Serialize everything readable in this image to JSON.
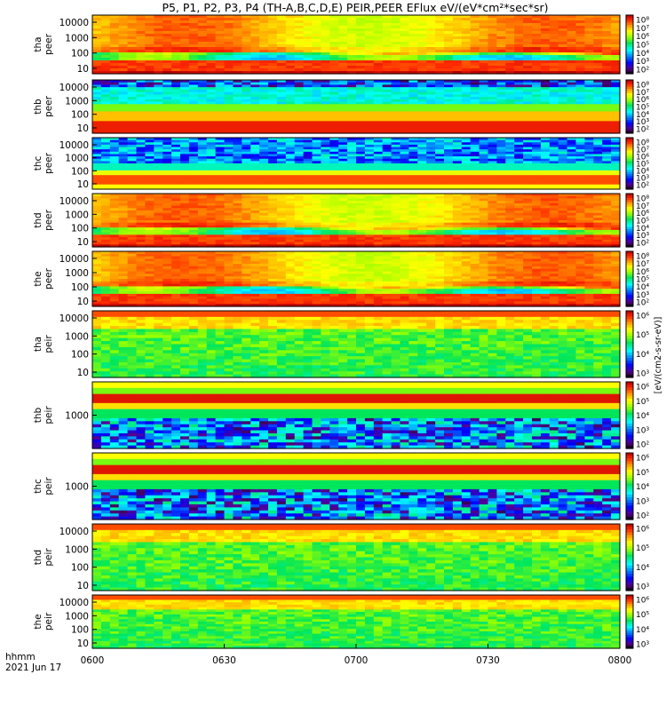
{
  "title": "P5, P1, P2, P3, P4 (TH-A,B,C,D,E) PEIR,PEER EFlux eV/(eV*cm²*sec*sr)",
  "footer": {
    "label1": "hhmm",
    "label2": "2021 Jun 17"
  },
  "colorbar_axis_label": "[eV/(cm2-s-sr-eV)]",
  "chart_data": [
    {
      "type": "heatmap",
      "id": "tha-peer",
      "ylabel_1": "tha",
      "ylabel_2": "peer",
      "yticks": [
        "10000",
        "1000",
        "100",
        "10"
      ],
      "cb_ticks": [
        "10⁸",
        "10⁷",
        "10⁶",
        "10⁵",
        "10⁴",
        "10³",
        "10²"
      ],
      "profile": "peer_hot"
    },
    {
      "type": "heatmap",
      "id": "thb-peer",
      "ylabel_1": "thb",
      "ylabel_2": "peer",
      "yticks": [
        "10000",
        "1000",
        "100",
        "10"
      ],
      "cb_ticks": [
        "10⁸",
        "10⁷",
        "10⁶",
        "10⁵",
        "10⁴",
        "10³",
        "10²"
      ],
      "profile": "peer_stripe"
    },
    {
      "type": "heatmap",
      "id": "thc-peer",
      "ylabel_1": "thc",
      "ylabel_2": "peer",
      "yticks": [
        "10000",
        "1000",
        "100",
        "10"
      ],
      "cb_ticks": [
        "10⁸",
        "10⁷",
        "10⁶",
        "10⁵",
        "10⁴",
        "10³",
        "10²"
      ],
      "profile": "peer_cool"
    },
    {
      "type": "heatmap",
      "id": "thd-peer",
      "ylabel_1": "thd",
      "ylabel_2": "peer",
      "yticks": [
        "10000",
        "1000",
        "100",
        "10"
      ],
      "cb_ticks": [
        "10⁸",
        "10⁷",
        "10⁶",
        "10⁵",
        "10⁴",
        "10³",
        "10²"
      ],
      "profile": "peer_hot"
    },
    {
      "type": "heatmap",
      "id": "the-peer",
      "ylabel_1": "the",
      "ylabel_2": "peer",
      "yticks": [
        "10000",
        "1000",
        "100",
        "10"
      ],
      "cb_ticks": [
        "10⁸",
        "10⁷",
        "10⁶",
        "10⁵",
        "10⁴",
        "10³",
        "10²"
      ],
      "profile": "peer_hot"
    },
    {
      "type": "heatmap",
      "id": "tha-peir",
      "ylabel_1": "tha",
      "ylabel_2": "peir",
      "yticks": [
        "10000",
        "1000",
        "100",
        "10"
      ],
      "cb_ticks": [
        "10⁶",
        "10⁵",
        "10⁴",
        "10³"
      ],
      "profile": "peir_green"
    },
    {
      "type": "heatmap",
      "id": "thb-peir",
      "ylabel_1": "thb",
      "ylabel_2": "peir",
      "yticks": [
        "1000"
      ],
      "cb_ticks": [
        "10⁶",
        "10⁵",
        "10⁴",
        "10³",
        "10²"
      ],
      "profile": "peir_band"
    },
    {
      "type": "heatmap",
      "id": "thc-peir",
      "ylabel_1": "thc",
      "ylabel_2": "peir",
      "yticks": [
        "1000"
      ],
      "cb_ticks": [
        "10⁶",
        "10⁵",
        "10⁴",
        "10³",
        "10²"
      ],
      "profile": "peir_band"
    },
    {
      "type": "heatmap",
      "id": "thd-peir",
      "ylabel_1": "thd",
      "ylabel_2": "peir",
      "yticks": [
        "10000",
        "1000",
        "100",
        "10"
      ],
      "cb_ticks": [
        "10⁶",
        "10⁵",
        "10⁴",
        "10³"
      ],
      "profile": "peir_green"
    },
    {
      "type": "heatmap",
      "id": "the-peir",
      "ylabel_1": "the",
      "ylabel_2": "peir",
      "yticks": [
        "10000",
        "1000",
        "100",
        "10"
      ],
      "cb_ticks": [
        "10⁶",
        "10⁵",
        "10⁴",
        "10³"
      ],
      "profile": "peir_green"
    }
  ],
  "xaxis": {
    "ticks": [
      "0600",
      "0630",
      "0700",
      "0730",
      "0800"
    ],
    "range": [
      "0600",
      "0800"
    ]
  }
}
